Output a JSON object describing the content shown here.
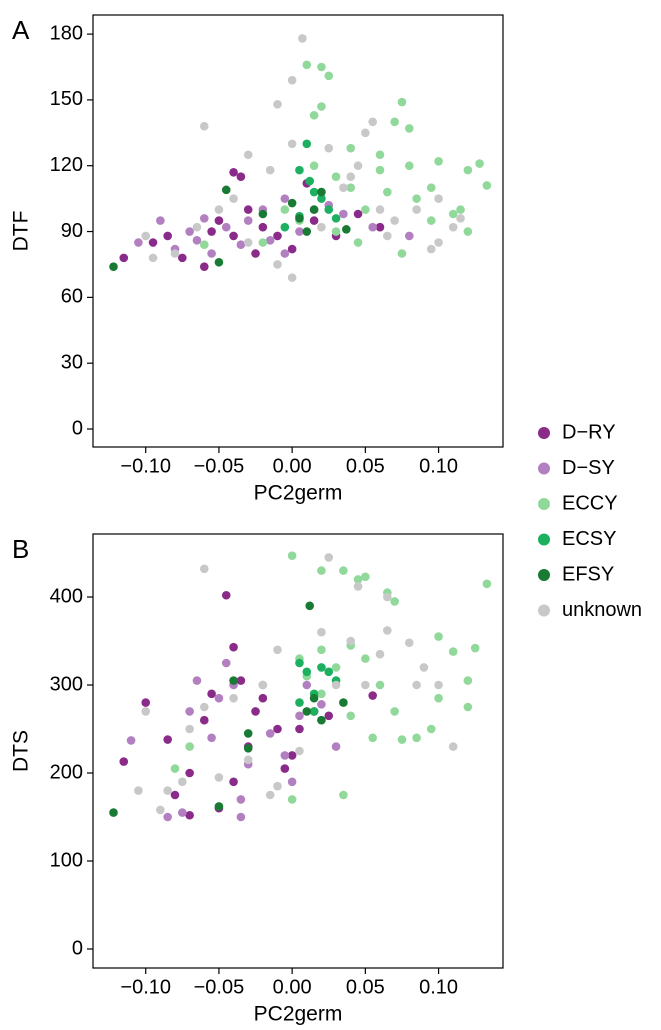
{
  "chart_data": [
    {
      "type": "scatter",
      "label": "A",
      "xlabel": "PC2germ",
      "ylabel": "DTF",
      "xlim": [
        -0.136,
        0.144
      ],
      "ylim": [
        -8.2,
        188.7
      ],
      "xticks": [
        {
          "value": -0.1,
          "label": "−0.10"
        },
        {
          "value": -0.05,
          "label": "−0.05"
        },
        {
          "value": 0,
          "label": "0.00"
        },
        {
          "value": 0.05,
          "label": "0.05"
        },
        {
          "value": 0.1,
          "label": "0.10"
        }
      ],
      "yticks": [
        0,
        30,
        60,
        90,
        120,
        150,
        180
      ],
      "series": [
        {
          "name": "D−RY",
          "color": "#8a2b89",
          "x": [
            -0.115,
            -0.095,
            -0.085,
            -0.075,
            -0.06,
            -0.055,
            -0.05,
            -0.04,
            -0.04,
            -0.035,
            -0.03,
            -0.025,
            -0.02,
            -0.01,
            0.0,
            0.01,
            0.015,
            0.03,
            0.06,
            0.045
          ],
          "values": [
            78,
            85,
            88,
            78,
            74,
            90,
            95,
            88,
            117,
            115,
            100,
            80,
            92,
            88,
            82,
            112,
            95,
            88,
            92,
            98
          ]
        },
        {
          "name": "D−SY",
          "color": "#b27fc1",
          "x": [
            -0.105,
            -0.09,
            -0.08,
            -0.07,
            -0.065,
            -0.055,
            -0.045,
            -0.035,
            -0.03,
            -0.02,
            -0.015,
            -0.005,
            0.005,
            0.015,
            0.025,
            0.035,
            0.055,
            0.08,
            -0.005,
            -0.06
          ],
          "values": [
            85,
            95,
            82,
            90,
            86,
            80,
            92,
            84,
            95,
            100,
            86,
            105,
            90,
            100,
            102,
            98,
            92,
            88,
            80,
            96
          ]
        },
        {
          "name": "ECCY",
          "color": "#90d99b",
          "x": [
            0.01,
            0.02,
            0.025,
            0.02,
            0.075,
            0.07,
            0.08,
            0.04,
            0.06,
            0.08,
            0.095,
            0.1,
            0.12,
            0.128,
            0.133,
            0.11,
            0.115,
            0.12,
            0.095,
            0.085,
            0.065,
            0.05,
            0.04,
            0.03,
            0.015,
            0.005,
            -0.005,
            0.075,
            0.045,
            0.02,
            0.015,
            0.06,
            0.03,
            -0.02,
            -0.06
          ],
          "values": [
            166,
            165,
            161,
            147,
            149,
            140,
            137,
            128,
            118,
            120,
            110,
            122,
            118,
            121,
            111,
            98,
            100,
            90,
            95,
            105,
            108,
            100,
            110,
            115,
            120,
            95,
            100,
            80,
            85,
            108,
            143,
            125,
            90,
            85,
            84
          ]
        },
        {
          "name": "ECSY",
          "color": "#1cb060",
          "x": [
            0.01,
            0.005,
            0.015,
            0.02,
            0.025,
            0.005,
            -0.005,
            0.03,
            0.012
          ],
          "values": [
            130,
            118,
            108,
            105,
            100,
            97,
            92,
            96,
            113
          ]
        },
        {
          "name": "EFSY",
          "color": "#197a34",
          "x": [
            -0.122,
            -0.045,
            -0.05,
            0.0,
            0.005,
            0.01,
            0.02,
            0.037,
            -0.02,
            0.015
          ],
          "values": [
            74,
            109,
            76,
            103,
            96,
            90,
            108,
            91,
            98,
            100
          ]
        },
        {
          "name": "unknown",
          "color": "#c8c8c8",
          "x": [
            0.007,
            0.0,
            -0.06,
            -0.01,
            -0.03,
            -0.015,
            0.0,
            0.025,
            0.045,
            0.05,
            0.055,
            0.035,
            0.06,
            0.07,
            0.085,
            0.1,
            0.1,
            0.095,
            -0.08,
            -0.095,
            -0.1,
            -0.065,
            -0.05,
            -0.03,
            -0.01,
            0.0,
            0.02,
            -0.04,
            0.04,
            0.065,
            0.11,
            0.115
          ],
          "values": [
            178,
            159,
            138,
            148,
            125,
            118,
            130,
            128,
            120,
            135,
            140,
            110,
            100,
            95,
            100,
            85,
            105,
            82,
            80,
            78,
            88,
            92,
            100,
            85,
            75,
            69,
            92,
            105,
            115,
            88,
            92,
            96
          ]
        }
      ]
    },
    {
      "type": "scatter",
      "label": "B",
      "xlabel": "PC2germ",
      "ylabel": "DTS",
      "xlim": [
        -0.136,
        0.144
      ],
      "ylim": [
        -21.6,
        471.6
      ],
      "xticks": [
        {
          "value": -0.1,
          "label": "−0.10"
        },
        {
          "value": -0.05,
          "label": "−0.05"
        },
        {
          "value": 0,
          "label": "0.00"
        },
        {
          "value": 0.05,
          "label": "0.05"
        },
        {
          "value": 0.1,
          "label": "0.10"
        }
      ],
      "yticks": [
        0,
        100,
        200,
        300,
        400
      ],
      "series": [
        {
          "name": "D−RY",
          "color": "#8a2b89",
          "x": [
            -0.115,
            -0.1,
            -0.085,
            -0.08,
            -0.07,
            -0.06,
            -0.055,
            -0.045,
            -0.04,
            -0.035,
            -0.03,
            -0.025,
            -0.02,
            -0.01,
            -0.005,
            0.0,
            0.005,
            0.015,
            0.025,
            0.055,
            -0.05,
            -0.07,
            -0.04
          ],
          "values": [
            213,
            280,
            238,
            175,
            200,
            260,
            290,
            402,
            190,
            305,
            230,
            270,
            285,
            250,
            205,
            220,
            250,
            270,
            265,
            288,
            160,
            152,
            343
          ]
        },
        {
          "name": "D−SY",
          "color": "#b27fc1",
          "x": [
            -0.11,
            -0.085,
            -0.075,
            -0.07,
            -0.065,
            -0.055,
            -0.05,
            -0.045,
            -0.04,
            -0.035,
            -0.03,
            -0.02,
            -0.015,
            -0.005,
            0.005,
            0.01,
            0.02,
            0.03,
            -0.035,
            0.0
          ],
          "values": [
            237,
            150,
            155,
            270,
            305,
            240,
            285,
            325,
            300,
            170,
            210,
            300,
            245,
            220,
            265,
            300,
            278,
            230,
            150,
            190
          ]
        },
        {
          "name": "ECCY",
          "color": "#90d99b",
          "x": [
            0.0,
            0.02,
            0.035,
            0.045,
            0.05,
            0.065,
            0.07,
            0.1,
            0.11,
            0.125,
            0.133,
            0.12,
            0.12,
            0.1,
            0.095,
            0.085,
            0.075,
            0.07,
            0.06,
            0.05,
            0.04,
            0.03,
            0.02,
            0.01,
            0.005,
            0.04,
            0.035,
            0.055,
            0.02,
            -0.08,
            -0.07,
            0.0
          ],
          "values": [
            447,
            430,
            430,
            420,
            423,
            405,
            395,
            355,
            338,
            342,
            415,
            305,
            275,
            285,
            250,
            240,
            238,
            270,
            300,
            330,
            345,
            320,
            290,
            310,
            330,
            265,
            175,
            240,
            340,
            205,
            230,
            170
          ]
        },
        {
          "name": "ECSY",
          "color": "#1cb060",
          "x": [
            0.005,
            0.01,
            0.02,
            0.015,
            0.025,
            0.015,
            0.005,
            0.03
          ],
          "values": [
            325,
            315,
            320,
            290,
            315,
            270,
            280,
            305
          ]
        },
        {
          "name": "EFSY",
          "color": "#197a34",
          "x": [
            -0.122,
            -0.05,
            -0.04,
            -0.03,
            -0.03,
            0.01,
            0.015,
            0.02,
            0.012,
            0.035
          ],
          "values": [
            155,
            162,
            305,
            245,
            228,
            270,
            285,
            260,
            390,
            280
          ]
        },
        {
          "name": "unknown",
          "color": "#c8c8c8",
          "x": [
            -0.06,
            0.025,
            0.045,
            0.065,
            0.065,
            0.08,
            0.09,
            0.1,
            0.11,
            0.06,
            0.04,
            0.02,
            -0.01,
            -0.02,
            -0.04,
            -0.06,
            -0.07,
            -0.075,
            -0.085,
            -0.09,
            -0.1,
            -0.105,
            -0.05,
            -0.03,
            -0.01,
            0.005,
            0.03,
            0.05,
            0.085,
            -0.015
          ],
          "values": [
            432,
            445,
            412,
            400,
            362,
            348,
            320,
            300,
            230,
            335,
            350,
            360,
            340,
            300,
            285,
            275,
            250,
            190,
            180,
            158,
            270,
            180,
            195,
            215,
            185,
            225,
            300,
            300,
            300,
            175
          ]
        }
      ]
    }
  ]
}
